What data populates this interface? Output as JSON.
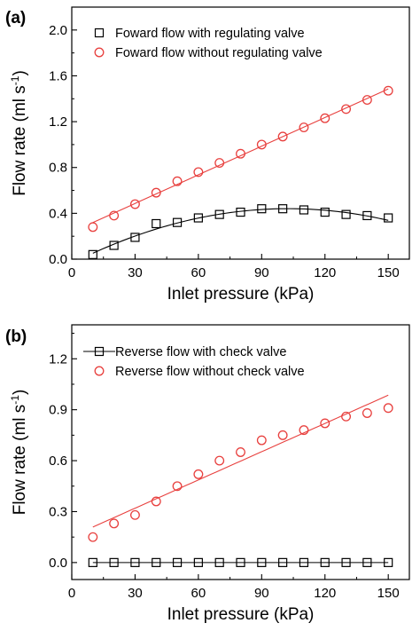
{
  "chart_data": [
    {
      "panel_label": "(a)",
      "type": "scatter",
      "xlabel": "Inlet pressure (kPa)",
      "ylabel_main": "Flow rate (ml s",
      "ylabel_sup": "-1",
      "ylabel_close": ")",
      "xlim": [
        0,
        160
      ],
      "ylim": [
        0,
        2.2
      ],
      "xticks": [
        0,
        30,
        60,
        90,
        120,
        150
      ],
      "yticks": [
        0.0,
        0.4,
        0.8,
        1.2,
        1.6,
        2.0
      ],
      "ytick_labels": [
        "0.0",
        "0.4",
        "0.8",
        "1.2",
        "1.6",
        "2.0"
      ],
      "legend_position": "top-center",
      "series": [
        {
          "name": "Foward flow with regulating valve",
          "marker": "square",
          "color": "#000000",
          "fit": "quadratic",
          "x": [
            10,
            20,
            30,
            40,
            50,
            60,
            70,
            80,
            90,
            100,
            110,
            120,
            130,
            140,
            150
          ],
          "y": [
            0.04,
            0.12,
            0.19,
            0.31,
            0.32,
            0.36,
            0.39,
            0.41,
            0.44,
            0.44,
            0.43,
            0.41,
            0.39,
            0.38,
            0.36
          ]
        },
        {
          "name": "Foward flow without regulating valve",
          "marker": "circle",
          "color": "#e8403e",
          "fit": "linear",
          "x": [
            10,
            20,
            30,
            40,
            50,
            60,
            70,
            80,
            90,
            100,
            110,
            120,
            130,
            140,
            150
          ],
          "y": [
            0.28,
            0.38,
            0.48,
            0.58,
            0.68,
            0.76,
            0.84,
            0.92,
            1.0,
            1.07,
            1.15,
            1.23,
            1.31,
            1.39,
            1.47
          ]
        }
      ]
    },
    {
      "panel_label": "(b)",
      "type": "scatter",
      "xlabel": "Inlet pressure (kPa)",
      "ylabel_main": "Flow rate (ml s",
      "ylabel_sup": "-1",
      "ylabel_close": ")",
      "xlim": [
        0,
        160
      ],
      "ylim": [
        -0.1,
        1.4
      ],
      "xticks": [
        0,
        30,
        60,
        90,
        120,
        150
      ],
      "yticks": [
        0.0,
        0.3,
        0.6,
        0.9,
        1.2
      ],
      "ytick_labels": [
        "0.0",
        "0.3",
        "0.6",
        "0.9",
        "1.2"
      ],
      "legend_position": "top-center",
      "series": [
        {
          "name": "Reverse flow with check valve",
          "marker": "square",
          "color": "#000000",
          "fit": "linear",
          "legend_line": true,
          "x": [
            10,
            20,
            30,
            40,
            50,
            60,
            70,
            80,
            90,
            100,
            110,
            120,
            130,
            140,
            150
          ],
          "y": [
            0,
            0,
            0,
            0,
            0,
            0,
            0,
            0,
            0,
            0,
            0,
            0,
            0,
            0,
            0
          ]
        },
        {
          "name": "Reverse flow without check valve",
          "marker": "circle",
          "color": "#e8403e",
          "fit": "linear",
          "legend_line": false,
          "x": [
            10,
            20,
            30,
            40,
            50,
            60,
            70,
            80,
            90,
            100,
            110,
            120,
            130,
            140,
            150
          ],
          "y": [
            0.15,
            0.23,
            0.28,
            0.36,
            0.45,
            0.52,
            0.6,
            0.65,
            0.72,
            0.75,
            0.78,
            0.82,
            0.86,
            0.88,
            0.91
          ]
        }
      ]
    }
  ]
}
